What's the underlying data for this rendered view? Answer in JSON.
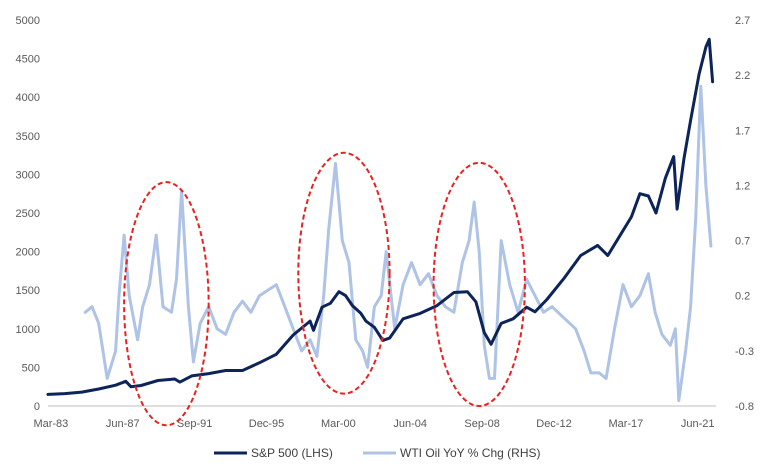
{
  "chart_data": {
    "type": "line",
    "title": "",
    "colors": {
      "sp500": "#0c2459",
      "wti": "#aec3e6",
      "highlight": "#e8221f",
      "axis": "#bfbfbf"
    },
    "x_tick_labels": [
      "Mar-83",
      "Jun-87",
      "Sep-91",
      "Dec-95",
      "Mar-00",
      "Jun-04",
      "Sep-08",
      "Dec-12",
      "Mar-17",
      "Jun-21"
    ],
    "x_tick_years": [
      1983.17,
      1987.42,
      1991.67,
      1995.92,
      2000.17,
      2004.42,
      2008.67,
      2012.92,
      2017.17,
      2021.42
    ],
    "xlim": [
      1983.0,
      2022.5
    ],
    "left_axis": {
      "ylim": [
        0,
        5000
      ],
      "ticks": [
        0,
        500,
        1000,
        1500,
        2000,
        2500,
        3000,
        3500,
        4000,
        4500,
        5000
      ],
      "tick_labels": [
        "0",
        "500",
        "1000",
        "1500",
        "2000",
        "2500",
        "3000",
        "3500",
        "4000",
        "4500",
        "5000"
      ]
    },
    "right_axis": {
      "ylim": [
        -0.8,
        2.7
      ],
      "ticks": [
        -0.8,
        -0.3,
        0.2,
        0.7,
        1.2,
        1.7,
        2.2,
        2.7
      ],
      "tick_labels": [
        "-0.8",
        "-0.3",
        "0.2",
        "0.7",
        "1.2",
        "1.7",
        "2.2",
        "2.7"
      ]
    },
    "series": [
      {
        "name": "S&P 500 (LHS)",
        "axis": "left",
        "x": [
          1983.0,
          1984.0,
          1985.0,
          1986.0,
          1987.0,
          1987.6,
          1987.9,
          1988.5,
          1989.5,
          1990.5,
          1990.8,
          1991.5,
          1992.5,
          1993.5,
          1994.5,
          1995.5,
          1996.5,
          1997.5,
          1998.5,
          1998.7,
          1999.2,
          1999.7,
          2000.2,
          2000.6,
          2001.0,
          2001.5,
          2001.8,
          2002.3,
          2002.8,
          2003.2,
          2004.0,
          2005.0,
          2006.0,
          2007.0,
          2007.8,
          2008.3,
          2008.8,
          2009.2,
          2009.8,
          2010.5,
          2011.3,
          2011.8,
          2012.5,
          2013.5,
          2014.5,
          2015.5,
          2016.1,
          2016.8,
          2017.5,
          2018.0,
          2018.5,
          2018.95,
          2019.5,
          2020.0,
          2020.2,
          2020.6,
          2021.0,
          2021.5,
          2021.9,
          2022.1,
          2022.3
        ],
        "values": [
          150,
          160,
          180,
          220,
          270,
          320,
          250,
          265,
          330,
          350,
          310,
          390,
          420,
          460,
          460,
          560,
          670,
          920,
          1100,
          980,
          1280,
          1330,
          1480,
          1430,
          1300,
          1200,
          1100,
          1020,
          850,
          880,
          1130,
          1200,
          1300,
          1470,
          1480,
          1350,
          950,
          800,
          1070,
          1130,
          1280,
          1220,
          1380,
          1650,
          1950,
          2080,
          1950,
          2200,
          2450,
          2750,
          2720,
          2500,
          2950,
          3230,
          2550,
          3200,
          3700,
          4300,
          4650,
          4750,
          4200
        ]
      },
      {
        "name": "WTI Oil YoY % Chg (RHS)",
        "axis": "right",
        "x": [
          1985.2,
          1985.6,
          1986.0,
          1986.5,
          1987.0,
          1987.2,
          1987.5,
          1987.8,
          1988.3,
          1988.6,
          1989.0,
          1989.4,
          1989.8,
          1990.3,
          1990.6,
          1990.9,
          1991.3,
          1991.6,
          1992.0,
          1992.5,
          1993.0,
          1993.5,
          1994.0,
          1994.5,
          1995.0,
          1995.5,
          1996.0,
          1996.5,
          1997.0,
          1997.5,
          1998.0,
          1998.5,
          1998.9,
          1999.3,
          1999.6,
          2000.0,
          2000.4,
          2000.8,
          2001.2,
          2001.6,
          2001.9,
          2002.3,
          2002.7,
          2003.0,
          2003.5,
          2004.0,
          2004.5,
          2005.0,
          2005.5,
          2006.0,
          2006.5,
          2007.0,
          2007.5,
          2007.9,
          2008.2,
          2008.5,
          2008.8,
          2009.1,
          2009.4,
          2009.8,
          2010.3,
          2010.8,
          2011.3,
          2011.8,
          2012.3,
          2012.8,
          2013.5,
          2014.2,
          2014.7,
          2015.1,
          2015.6,
          2016.0,
          2016.5,
          2017.0,
          2017.5,
          2018.0,
          2018.5,
          2018.9,
          2019.3,
          2019.8,
          2020.1,
          2020.3,
          2020.7,
          2021.0,
          2021.3,
          2021.6,
          2021.9,
          2022.2
        ],
        "values": [
          0.05,
          0.1,
          -0.05,
          -0.55,
          -0.3,
          0.2,
          0.75,
          0.2,
          -0.2,
          0.1,
          0.3,
          0.75,
          0.1,
          0.05,
          0.35,
          1.15,
          0.1,
          -0.4,
          -0.05,
          0.1,
          -0.1,
          -0.15,
          0.05,
          0.15,
          0.05,
          0.2,
          0.25,
          0.3,
          0.1,
          -0.1,
          -0.3,
          -0.2,
          -0.35,
          0.2,
          0.8,
          1.4,
          0.7,
          0.5,
          -0.2,
          -0.3,
          -0.45,
          0.1,
          0.2,
          0.6,
          -0.1,
          0.3,
          0.5,
          0.3,
          0.4,
          0.2,
          0.1,
          0.05,
          0.5,
          0.7,
          1.05,
          0.6,
          -0.25,
          -0.55,
          -0.55,
          0.7,
          0.3,
          0.05,
          0.35,
          0.2,
          0.05,
          0.1,
          0.0,
          -0.1,
          -0.3,
          -0.5,
          -0.5,
          -0.55,
          -0.1,
          0.3,
          0.1,
          0.2,
          0.4,
          0.05,
          -0.15,
          -0.25,
          -0.1,
          -0.75,
          -0.3,
          0.1,
          0.9,
          2.1,
          1.2,
          0.65
        ]
      }
    ],
    "highlights": [
      {
        "label": "ellipse-1",
        "x_center": 1990.0,
        "x_radius": 2.5,
        "y_top": 2900,
        "y_bottom": -250
      },
      {
        "label": "ellipse-2",
        "x_center": 2000.5,
        "x_radius": 2.7,
        "y_top": 3280,
        "y_bottom": 160
      },
      {
        "label": "ellipse-3",
        "x_center": 2008.5,
        "x_radius": 2.7,
        "y_top": 3150,
        "y_bottom": 0
      }
    ]
  }
}
